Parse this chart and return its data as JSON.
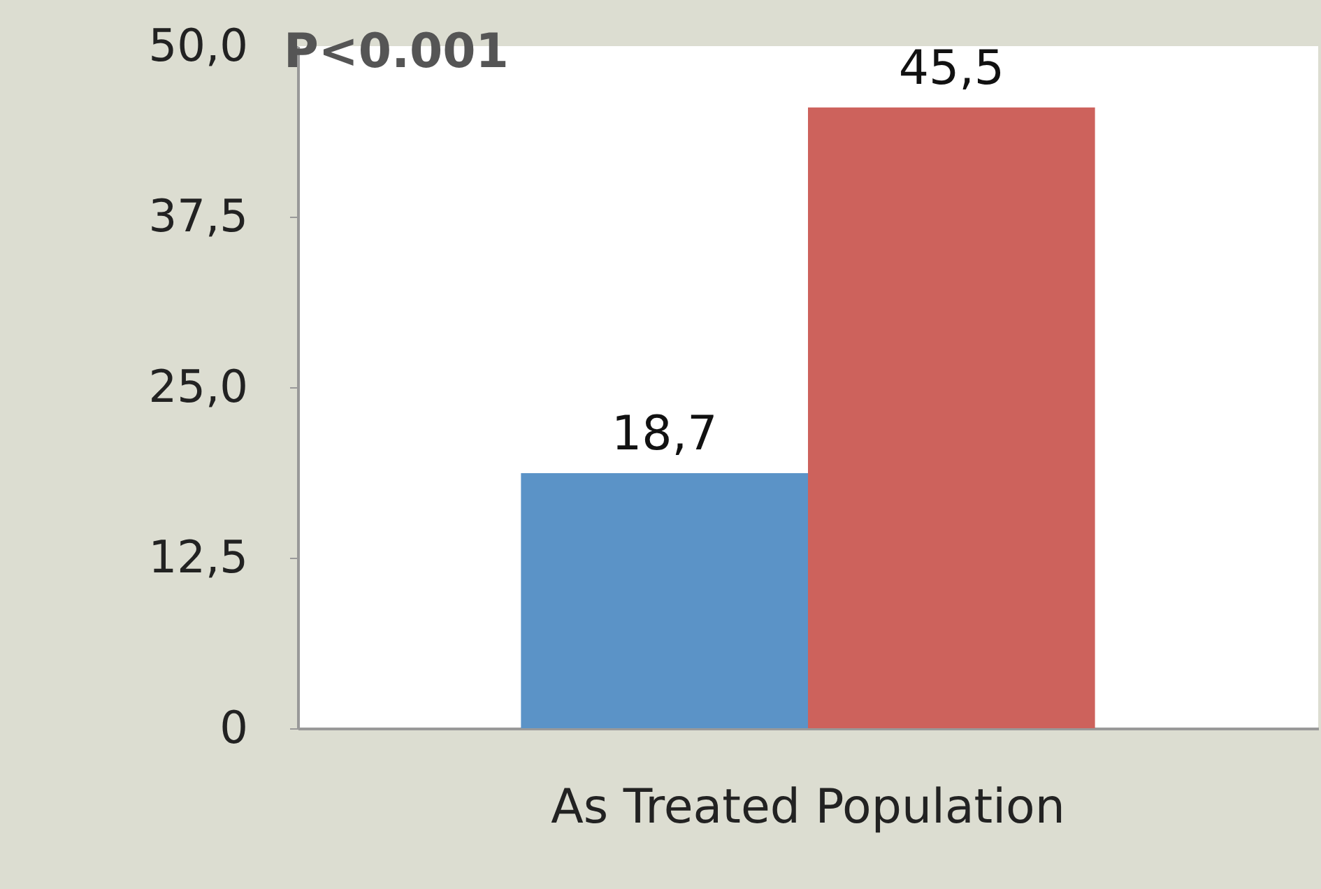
{
  "chart_data": {
    "type": "bar",
    "categories": [
      "As Treated Population"
    ],
    "series": [
      {
        "color": "#5b93c7",
        "values": [
          18.7
        ],
        "value_labels": [
          "18,7"
        ]
      },
      {
        "color": "#cd625c",
        "values": [
          45.5
        ],
        "value_labels": [
          "45,5"
        ]
      }
    ],
    "ylim": [
      0,
      50
    ],
    "yticks": [
      {
        "value": 0,
        "label": "0"
      },
      {
        "value": 12.5,
        "label": "12,5"
      },
      {
        "value": 25,
        "label": "25,0"
      },
      {
        "value": 37.5,
        "label": "37,5"
      },
      {
        "value": 50,
        "label": "50,0"
      }
    ],
    "annotations": [
      "P<0.001"
    ],
    "grid": false,
    "legend": false
  }
}
